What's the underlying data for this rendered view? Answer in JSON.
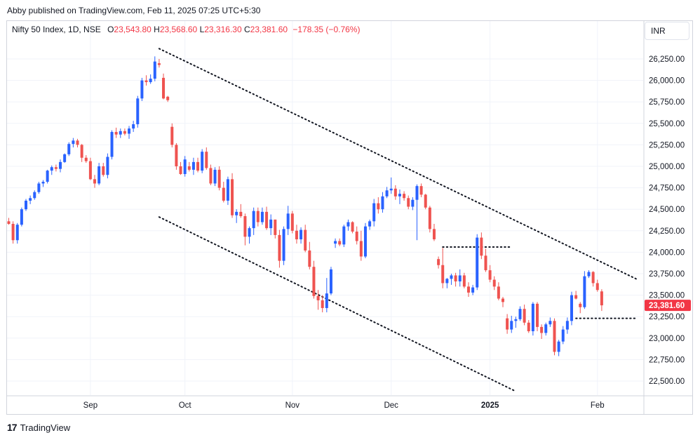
{
  "header": {
    "published_text": "Abby published on TradingView.com, Feb 11, 2025 07:25 UTC+5:30"
  },
  "legend": {
    "symbol": "Nifty 50 Index, 1D, NSE",
    "o_label": "O",
    "o_value": "23,543.80",
    "h_label": "H",
    "h_value": "23,568.60",
    "l_label": "L",
    "l_value": "23,316.30",
    "c_label": "C",
    "c_value": "23,381.60",
    "change": "−178.35 (−0.76%)"
  },
  "currency": "INR",
  "footer": {
    "brand": "TradingView",
    "logo": "17"
  },
  "colors": {
    "up": "#2962ff",
    "down": "#ef5350",
    "price_label_bg": "#f23645",
    "grid": "#f0f3fa",
    "border": "#d1d4dc"
  },
  "chart_data": {
    "type": "candlestick",
    "title": "Nifty 50 Index, 1D, NSE",
    "ylim": [
      22350,
      26400
    ],
    "y_ticks": [
      "26,250.00",
      "26,000.00",
      "25,750.00",
      "25,500.00",
      "25,250.00",
      "25,000.00",
      "24,750.00",
      "24,500.00",
      "24,250.00",
      "24,000.00",
      "23,750.00",
      "23,500.00",
      "23,250.00",
      "23,000.00",
      "22,750.00",
      "22,500.00"
    ],
    "y_tick_values": [
      26250,
      26000,
      25750,
      25500,
      25250,
      25000,
      24750,
      24500,
      24250,
      24000,
      23750,
      23500,
      23250,
      23000,
      22750,
      22500
    ],
    "x_ticks": [
      {
        "label": "Sep",
        "index": 19
      },
      {
        "label": "Oct",
        "index": 41
      },
      {
        "label": "Nov",
        "index": 66
      },
      {
        "label": "Dec",
        "index": 89
      },
      {
        "label": "2025",
        "index": 112
      },
      {
        "label": "Feb",
        "index": 137
      }
    ],
    "last_price_label": "23,381.60",
    "last_price": 23381.6,
    "candles": [
      [
        24360,
        24400,
        24320,
        24330
      ],
      [
        24330,
        24360,
        24100,
        24140
      ],
      [
        24140,
        24340,
        24100,
        24320
      ],
      [
        24320,
        24520,
        24300,
        24500
      ],
      [
        24500,
        24620,
        24480,
        24600
      ],
      [
        24600,
        24660,
        24560,
        24630
      ],
      [
        24630,
        24720,
        24610,
        24700
      ],
      [
        24700,
        24820,
        24680,
        24800
      ],
      [
        24800,
        24840,
        24760,
        24820
      ],
      [
        24820,
        24960,
        24800,
        24950
      ],
      [
        24950,
        25010,
        24900,
        24990
      ],
      [
        24990,
        25020,
        24940,
        24970
      ],
      [
        24970,
        25080,
        24930,
        25050
      ],
      [
        25050,
        25150,
        25040,
        25140
      ],
      [
        25140,
        25280,
        25120,
        25260
      ],
      [
        25260,
        25330,
        25220,
        25300
      ],
      [
        25300,
        25320,
        25220,
        25250
      ],
      [
        25250,
        25260,
        25050,
        25100
      ],
      [
        25100,
        25130,
        25040,
        25060
      ],
      [
        25060,
        25100,
        24840,
        24850
      ],
      [
        24850,
        24900,
        24750,
        24800
      ],
      [
        24800,
        25040,
        24780,
        25000
      ],
      [
        25000,
        25040,
        24880,
        24900
      ],
      [
        24900,
        25150,
        24860,
        25110
      ],
      [
        25110,
        25420,
        25080,
        25400
      ],
      [
        25400,
        25450,
        25330,
        25370
      ],
      [
        25370,
        25440,
        25330,
        25410
      ],
      [
        25410,
        25440,
        25360,
        25380
      ],
      [
        25380,
        25470,
        25320,
        25440
      ],
      [
        25440,
        25530,
        25400,
        25490
      ],
      [
        25490,
        25820,
        25450,
        25790
      ],
      [
        25790,
        26030,
        25760,
        26000
      ],
      [
        26000,
        26060,
        25940,
        25980
      ],
      [
        25980,
        26070,
        25960,
        26020
      ],
      [
        26020,
        26280,
        25990,
        26220
      ],
      [
        26200,
        26250,
        26150,
        26180
      ],
      [
        26030,
        26080,
        25780,
        25790
      ],
      [
        25810,
        25820,
        25750,
        25770
      ],
      [
        25460,
        25500,
        25220,
        25250
      ],
      [
        25250,
        25270,
        24960,
        25000
      ],
      [
        25000,
        25050,
        24900,
        24910
      ],
      [
        24910,
        25120,
        24880,
        25080
      ],
      [
        25000,
        25050,
        24940,
        24960
      ],
      [
        24960,
        25100,
        24900,
        25050
      ],
      [
        25050,
        25100,
        24930,
        24950
      ],
      [
        24950,
        25200,
        24920,
        25170
      ],
      [
        25170,
        25220,
        24960,
        24980
      ],
      [
        24980,
        25020,
        24780,
        24800
      ],
      [
        24800,
        24990,
        24770,
        24960
      ],
      [
        24960,
        25000,
        24720,
        24750
      ],
      [
        24750,
        24820,
        24580,
        24600
      ],
      [
        24600,
        24880,
        24550,
        24850
      ],
      [
        24850,
        24920,
        24400,
        24430
      ],
      [
        24430,
        24500,
        24340,
        24470
      ],
      [
        24470,
        24560,
        24400,
        24420
      ],
      [
        24420,
        24450,
        24080,
        24180
      ],
      [
        24180,
        24300,
        24100,
        24280
      ],
      [
        24280,
        24520,
        24200,
        24480
      ],
      [
        24480,
        24520,
        24300,
        24350
      ],
      [
        24350,
        24520,
        24320,
        24470
      ],
      [
        24470,
        24530,
        24260,
        24280
      ],
      [
        24280,
        24440,
        24200,
        24380
      ],
      [
        24380,
        24380,
        24160,
        24200
      ],
      [
        24200,
        24260,
        23820,
        23900
      ],
      [
        23900,
        24300,
        23850,
        24270
      ],
      [
        24270,
        24540,
        24200,
        24450
      ],
      [
        24450,
        24480,
        24220,
        24250
      ],
      [
        24250,
        24320,
        24100,
        24150
      ],
      [
        24150,
        24290,
        24100,
        24260
      ],
      [
        24260,
        24320,
        24000,
        24020
      ],
      [
        24020,
        24120,
        23800,
        23830
      ],
      [
        23830,
        23900,
        23460,
        23490
      ],
      [
        23490,
        23560,
        23330,
        23440
      ],
      [
        23440,
        23500,
        23300,
        23350
      ],
      [
        23350,
        23700,
        23300,
        23520
      ],
      [
        23520,
        23830,
        23500,
        23800
      ],
      [
        24100,
        24160,
        24050,
        24130
      ],
      [
        24130,
        24160,
        24070,
        24090
      ],
      [
        24090,
        24320,
        24060,
        24300
      ],
      [
        24300,
        24380,
        24250,
        24350
      ],
      [
        24350,
        24360,
        24220,
        24240
      ],
      [
        24240,
        24300,
        24090,
        24130
      ],
      [
        24130,
        24250,
        23900,
        23950
      ],
      [
        23950,
        24340,
        23930,
        24300
      ],
      [
        24300,
        24380,
        24260,
        24360
      ],
      [
        24360,
        24620,
        24300,
        24570
      ],
      [
        24570,
        24640,
        24450,
        24500
      ],
      [
        24500,
        24700,
        24460,
        24650
      ],
      [
        24650,
        24760,
        24630,
        24720
      ],
      [
        24720,
        24870,
        24680,
        24740
      ],
      [
        24740,
        24780,
        24610,
        24650
      ],
      [
        24650,
        24730,
        24560,
        24680
      ],
      [
        24680,
        24710,
        24600,
        24630
      ],
      [
        24630,
        24660,
        24500,
        24530
      ],
      [
        24530,
        24640,
        24490,
        24610
      ],
      [
        24610,
        24790,
        24140,
        24770
      ],
      [
        24770,
        24800,
        24640,
        24670
      ],
      [
        24670,
        24680,
        24500,
        24520
      ],
      [
        24520,
        24540,
        24230,
        24270
      ],
      [
        24270,
        24330,
        24130,
        24150
      ],
      [
        23920,
        23950,
        23810,
        23850
      ],
      [
        23850,
        24050,
        23580,
        23640
      ],
      [
        23640,
        23700,
        23580,
        23690
      ],
      [
        23690,
        23750,
        23620,
        23730
      ],
      [
        23730,
        23760,
        23600,
        23660
      ],
      [
        23660,
        23800,
        23600,
        23730
      ],
      [
        23730,
        23760,
        23580,
        23600
      ],
      [
        23600,
        23650,
        23480,
        23530
      ],
      [
        23530,
        23620,
        23500,
        23590
      ],
      [
        23590,
        24210,
        23560,
        24170
      ],
      [
        24170,
        24230,
        23920,
        23960
      ],
      [
        23960,
        24040,
        23770,
        23790
      ],
      [
        23790,
        23850,
        23650,
        23680
      ],
      [
        23680,
        23720,
        23560,
        23600
      ],
      [
        23600,
        23650,
        23440,
        23460
      ],
      [
        23460,
        23480,
        23360,
        23420
      ],
      [
        23230,
        23280,
        23050,
        23100
      ],
      [
        23100,
        23260,
        23060,
        23200
      ],
      [
        23200,
        23250,
        23120,
        23220
      ],
      [
        23220,
        23370,
        23200,
        23340
      ],
      [
        23340,
        23390,
        23150,
        23180
      ],
      [
        23180,
        23210,
        23060,
        23080
      ],
      [
        23080,
        23420,
        23030,
        23400
      ],
      [
        23400,
        23420,
        23080,
        23130
      ],
      [
        23130,
        23160,
        22990,
        23060
      ],
      [
        23060,
        23180,
        23030,
        23160
      ],
      [
        23160,
        23240,
        23130,
        23200
      ],
      [
        23200,
        23230,
        22800,
        22840
      ],
      [
        22840,
        22980,
        22790,
        22960
      ],
      [
        22960,
        23140,
        22930,
        23100
      ],
      [
        23100,
        23240,
        23050,
        23200
      ],
      [
        23200,
        23540,
        23150,
        23500
      ],
      [
        23500,
        23550,
        23450,
        23460
      ],
      [
        23400,
        23420,
        23290,
        23360
      ],
      [
        23360,
        23780,
        23340,
        23720
      ],
      [
        23720,
        23790,
        23700,
        23770
      ],
      [
        23770,
        23780,
        23600,
        23640
      ],
      [
        23640,
        23680,
        23540,
        23560
      ],
      [
        23543.8,
        23568.6,
        23316.3,
        23381.6
      ]
    ],
    "trendlines": [
      {
        "style": "dotted",
        "from": {
          "index": 35,
          "value": 26370
        },
        "to": {
          "index": 146,
          "value": 23690
        }
      },
      {
        "style": "dotted",
        "from": {
          "index": 35,
          "value": 24410
        },
        "to": {
          "index": 118,
          "value": 22380
        }
      },
      {
        "style": "dotted",
        "from": {
          "index": 101,
          "value": 24060
        },
        "to": {
          "index": 117,
          "value": 24060
        }
      },
      {
        "style": "dotted",
        "from": {
          "index": 132,
          "value": 23230
        },
        "to": {
          "index": 146,
          "value": 23230
        }
      }
    ]
  }
}
